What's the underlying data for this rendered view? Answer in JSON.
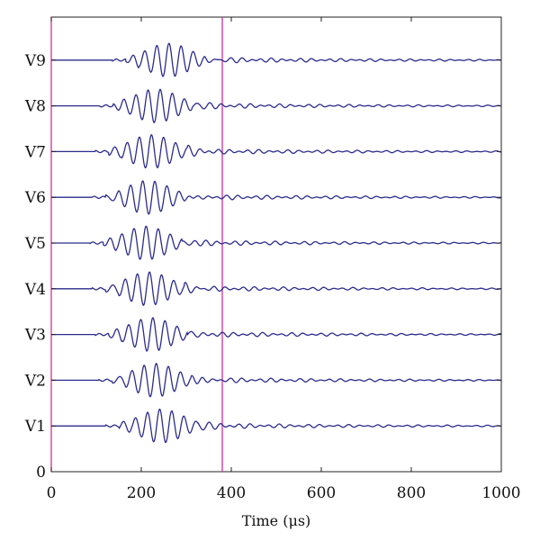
{
  "chart_data": {
    "type": "line",
    "title": "",
    "xlabel": "Time (μs)",
    "ylabel": "",
    "xlim": [
      0,
      1000
    ],
    "x_ticks": [
      0,
      200,
      400,
      600,
      800,
      1000
    ],
    "y_tick_labels": [
      "0",
      "V1",
      "V2",
      "V3",
      "V4",
      "V5",
      "V6",
      "V7",
      "V8",
      "V9"
    ],
    "grid": false,
    "trace_color": "#2b2b8c",
    "marker_color": "#d0309a",
    "vertical_markers": [
      0,
      380
    ],
    "series": [
      {
        "label": "V1",
        "packet_center": 245,
        "packet_peak": 0.85
      },
      {
        "label": "V2",
        "packet_center": 230,
        "packet_peak": 0.85
      },
      {
        "label": "V3",
        "packet_center": 222,
        "packet_peak": 0.85
      },
      {
        "label": "V4",
        "packet_center": 215,
        "packet_peak": 0.85
      },
      {
        "label": "V5",
        "packet_center": 210,
        "packet_peak": 0.85
      },
      {
        "label": "V6",
        "packet_center": 215,
        "packet_peak": 0.85
      },
      {
        "label": "V7",
        "packet_center": 222,
        "packet_peak": 0.85
      },
      {
        "label": "V8",
        "packet_center": 232,
        "packet_peak": 0.85
      },
      {
        "label": "V9",
        "packet_center": 260,
        "packet_peak": 0.85
      }
    ]
  }
}
